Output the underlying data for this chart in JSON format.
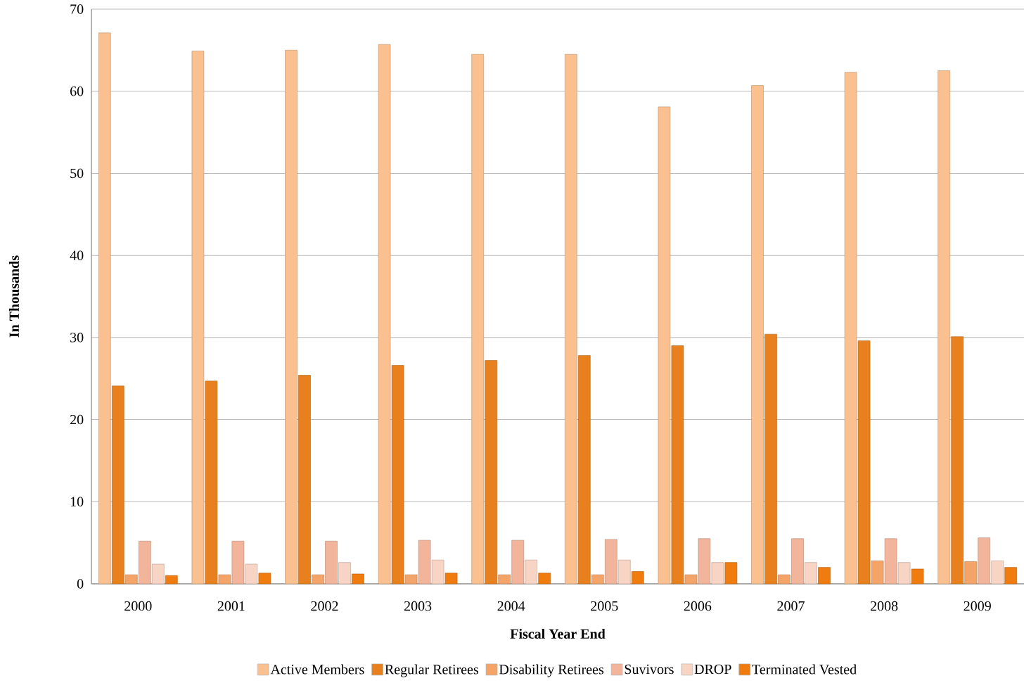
{
  "chart_data": {
    "type": "bar",
    "xlabel": "Fiscal Year End",
    "ylabel": "In Thousands",
    "categories": [
      "2000",
      "2001",
      "2002",
      "2003",
      "2004",
      "2005",
      "2006",
      "2007",
      "2008",
      "2009"
    ],
    "series": [
      {
        "name": "Active Members",
        "color": "#fac090",
        "values": [
          67.1,
          64.9,
          65.0,
          65.7,
          64.5,
          64.5,
          58.1,
          60.7,
          62.3,
          62.5
        ]
      },
      {
        "name": "Regular Retirees",
        "color": "#e8801e",
        "values": [
          24.1,
          24.7,
          25.4,
          26.6,
          27.2,
          27.8,
          29.0,
          30.4,
          29.6,
          30.1
        ]
      },
      {
        "name": "Disability Retirees",
        "color": "#f4a468",
        "values": [
          1.1,
          1.1,
          1.1,
          1.1,
          1.1,
          1.1,
          1.1,
          1.1,
          2.8,
          2.7
        ]
      },
      {
        "name": "Suvivors",
        "color": "#f2b49a",
        "values": [
          5.2,
          5.2,
          5.2,
          5.3,
          5.3,
          5.4,
          5.5,
          5.5,
          5.5,
          5.6
        ]
      },
      {
        "name": "DROP",
        "color": "#f8d4c4",
        "values": [
          2.4,
          2.4,
          2.6,
          2.9,
          2.9,
          2.9,
          2.6,
          2.6,
          2.6,
          2.8
        ]
      },
      {
        "name": "Terminated Vested",
        "color": "#f07c10",
        "values": [
          1.0,
          1.3,
          1.2,
          1.3,
          1.3,
          1.5,
          2.6,
          2.0,
          1.8,
          2.0
        ]
      }
    ],
    "ylim": [
      0,
      70
    ],
    "yticks": [
      0,
      10,
      20,
      30,
      40,
      50,
      60,
      70
    ],
    "grid": "y",
    "legend": "bottom"
  }
}
